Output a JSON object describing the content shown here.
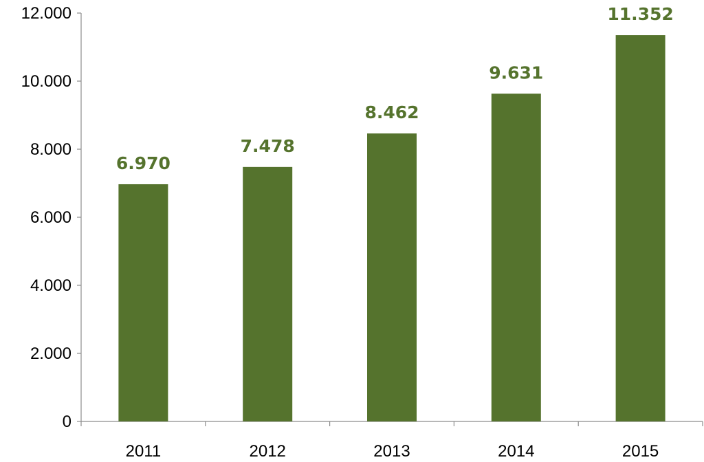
{
  "chart_data": {
    "type": "bar",
    "categories": [
      "2011",
      "2012",
      "2013",
      "2014",
      "2015"
    ],
    "values": [
      6970,
      7478,
      8462,
      9631,
      11352
    ],
    "value_labels": [
      "6.970",
      "7.478",
      "8.462",
      "9.631",
      "11.352"
    ],
    "y_ticks": [
      0,
      2000,
      4000,
      6000,
      8000,
      10000,
      12000
    ],
    "y_tick_labels": [
      "0",
      "2.000",
      "4.000",
      "6.000",
      "8.000",
      "10.000",
      "12.000"
    ],
    "ylim": [
      0,
      12000
    ],
    "grid": false,
    "legend": "none",
    "colors": {
      "bar": "#55732d",
      "label": "#55732d",
      "axis": "#8c8c8c"
    }
  }
}
